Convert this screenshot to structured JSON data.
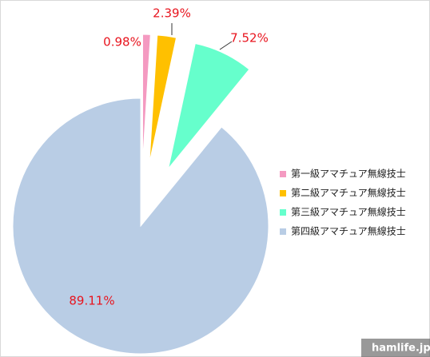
{
  "chart_data": {
    "type": "pie",
    "categories": [
      "第一級アマチュア無線技士",
      "第二級アマチュア無線技士",
      "第三級アマチュア無線技士",
      "第四級アマチュア無線技士"
    ],
    "values": [
      0.98,
      2.39,
      7.52,
      89.11
    ],
    "value_labels": [
      "0.98%",
      "2.39%",
      "7.52%",
      "89.11%"
    ],
    "colors": [
      "#f49ac1",
      "#ffc000",
      "#66ffcc",
      "#b9cde5"
    ],
    "legend": "right"
  },
  "watermark": "hamlife.jp"
}
